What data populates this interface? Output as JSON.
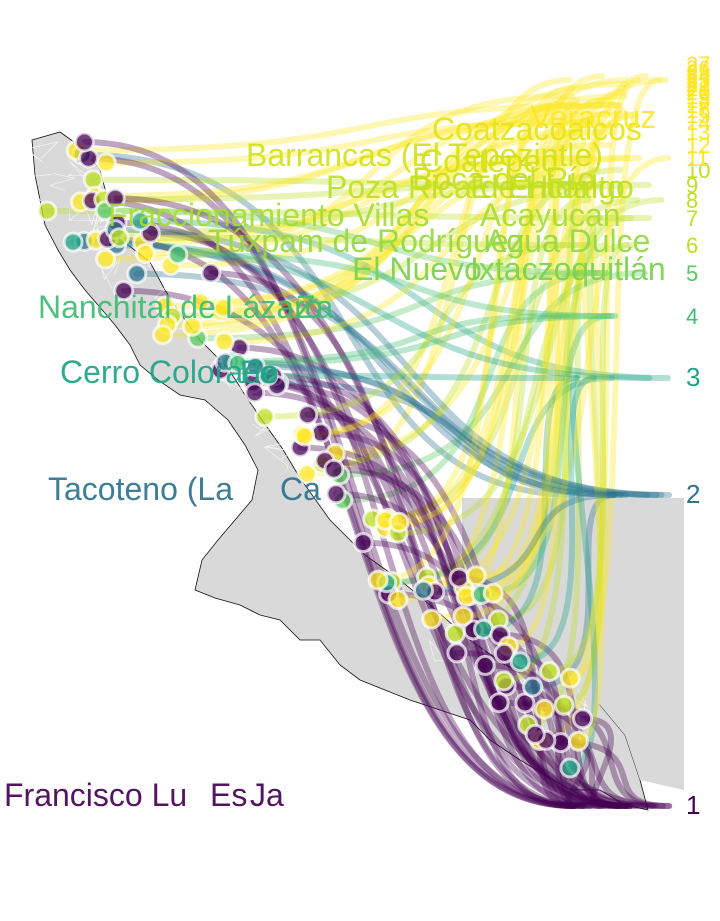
{
  "map": {
    "region": "Veracruz",
    "colors": {
      "land": "#d9d9d9",
      "municipal_border": "#ffffff",
      "coast_outline": "#111111",
      "scale": [
        "#440154",
        "#2c728e",
        "#20a486",
        "#5ec962",
        "#bddf26",
        "#fde725"
      ]
    },
    "rank_labels": [
      "1",
      "2",
      "3",
      "4",
      "5",
      "6",
      "7",
      "8",
      "9",
      "10",
      "11",
      "12",
      "13",
      "14",
      "15",
      "16",
      "17",
      "18",
      "19",
      "20",
      "21",
      "22",
      "23",
      "24",
      "25",
      "26",
      "27"
    ],
    "visible_place_labels": [
      {
        "row": 1,
        "text": "Francisco Lu",
        "color": "#440154"
      },
      {
        "row": 1,
        "text": "Es",
        "color": "#440154"
      },
      {
        "row": 1,
        "text": "Ja",
        "color": "#440154"
      },
      {
        "row": 2,
        "text": "Tacoteno (La",
        "color": "#2c728e"
      },
      {
        "row": 2,
        "text": "Ca",
        "color": "#2c728e"
      },
      {
        "row": 3,
        "text": "Cerro Colorado",
        "color": "#20a486"
      },
      {
        "row": 3,
        "text": "Fe",
        "color": "#20a486"
      },
      {
        "row": 4,
        "text": "Nanchital de Lázaro",
        "color": "#3fbc73"
      },
      {
        "row": 4,
        "text": "Za",
        "color": "#3fbc73"
      },
      {
        "row": 5,
        "text": "El Nuevo",
        "color": "#7ad151"
      },
      {
        "row": 5,
        "text": "Ixtaczoquitlán",
        "color": "#7ad151"
      },
      {
        "row": 6,
        "text": "Túxpam de Rodríguez",
        "color": "#95d840"
      },
      {
        "row": 6,
        "text": "Agua Dulce",
        "color": "#95d840"
      },
      {
        "row": 7,
        "text": "Fraccionamiento Villas",
        "color": "#a8db34"
      },
      {
        "row": 7,
        "text": "Acayucan",
        "color": "#a8db34"
      },
      {
        "row": 8,
        "text": "Poza Rica de Hidalgo",
        "color": "#bddf26"
      },
      {
        "row": 8,
        "text": "El Encanto",
        "color": "#bddf26"
      },
      {
        "row": 9,
        "text": "Boca del Río",
        "color": "#c8e020"
      },
      {
        "row": 10,
        "text": "Coatepec",
        "color": "#d2e21b"
      },
      {
        "row": 11,
        "text": "Barrancas (El Tepezintle)",
        "color": "#d2e21b"
      },
      {
        "row": 12,
        "text": "Coatzacoalcos",
        "color": "#e5e419"
      },
      {
        "row": 13,
        "text": "Veracruz",
        "color": "#fde725"
      }
    ]
  }
}
